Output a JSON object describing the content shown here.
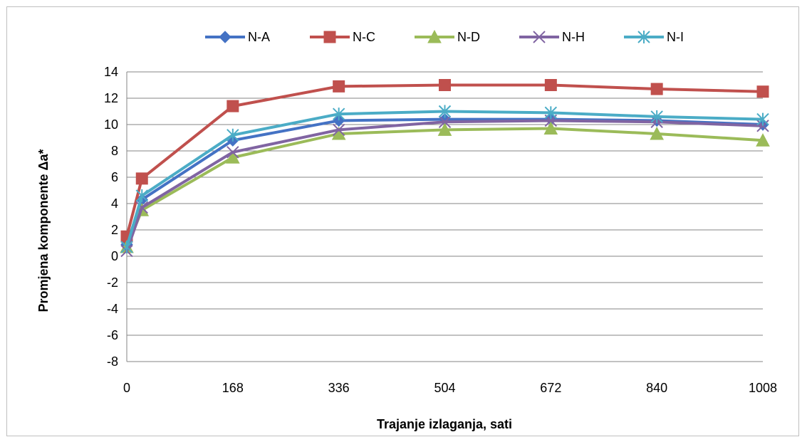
{
  "chart_data": {
    "type": "line",
    "title": "",
    "xlabel": "Trajanje izlaganja, sati",
    "ylabel": "Promjena komponente Δa*",
    "x": [
      0,
      24,
      168,
      336,
      504,
      672,
      840,
      1008
    ],
    "x_ticks": [
      0,
      168,
      336,
      504,
      672,
      840,
      1008
    ],
    "x_tick_labels": [
      "0",
      "168",
      "336",
      "504",
      "672",
      "840",
      "1008"
    ],
    "xlim": [
      0,
      1008
    ],
    "ylim": [
      -8,
      14
    ],
    "y_ticks": [
      -8,
      -6,
      -4,
      -2,
      0,
      2,
      4,
      6,
      8,
      10,
      12,
      14
    ],
    "y_tick_labels": [
      "-8",
      "-6",
      "-4",
      "-2",
      "0",
      "2",
      "4",
      "6",
      "8",
      "10",
      "12",
      "14"
    ],
    "grid": true,
    "legend_position": "top",
    "series": [
      {
        "name": "N-A",
        "color": "#4472c4",
        "marker": "diamond",
        "values": [
          0.9,
          4.3,
          8.8,
          10.3,
          10.4,
          10.4,
          10.3,
          10.0
        ]
      },
      {
        "name": "N-C",
        "color": "#c0504d",
        "marker": "square",
        "values": [
          1.5,
          5.9,
          11.4,
          12.9,
          13.0,
          13.0,
          12.7,
          12.5
        ]
      },
      {
        "name": "N-D",
        "color": "#9bbb59",
        "marker": "triangle",
        "values": [
          0.7,
          3.5,
          7.5,
          9.3,
          9.6,
          9.7,
          9.3,
          8.8
        ]
      },
      {
        "name": "N-H",
        "color": "#8064a2",
        "marker": "x",
        "values": [
          0.4,
          3.7,
          7.9,
          9.6,
          10.2,
          10.3,
          10.2,
          9.9
        ]
      },
      {
        "name": "N-I",
        "color": "#4bacc6",
        "marker": "asterisk",
        "values": [
          0.7,
          4.6,
          9.2,
          10.8,
          11.0,
          10.9,
          10.6,
          10.4
        ]
      }
    ]
  }
}
